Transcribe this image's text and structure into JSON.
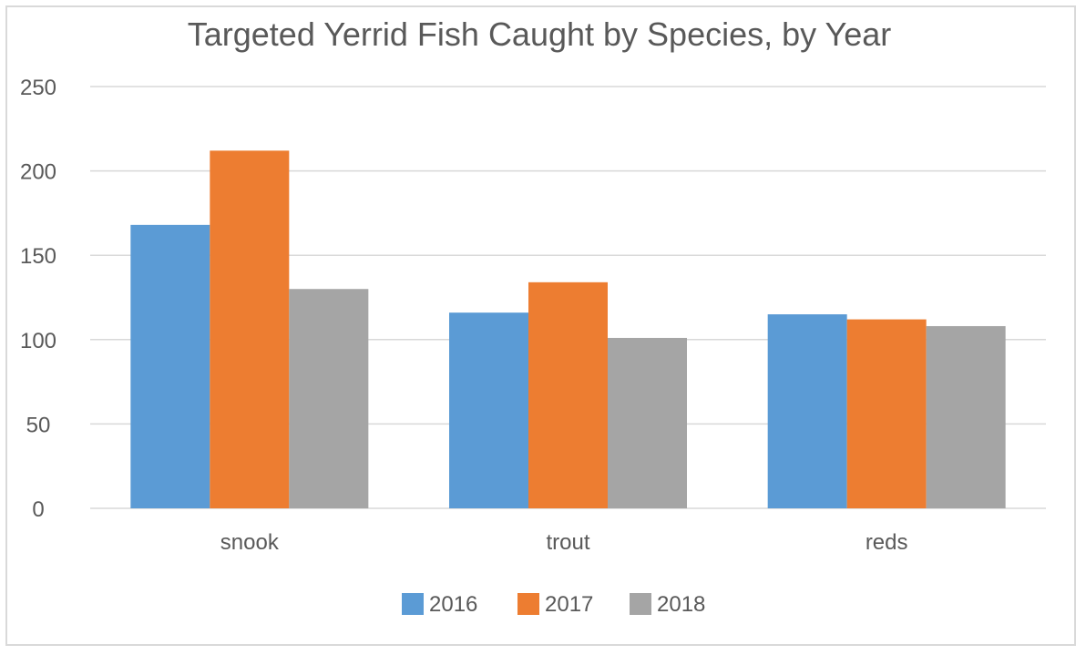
{
  "chart_data": {
    "type": "bar",
    "title": "Targeted Yerrid Fish Caught by Species, by Year",
    "xlabel": "",
    "ylabel": "",
    "categories": [
      "snook",
      "trout",
      "reds"
    ],
    "series": [
      {
        "name": "2016",
        "color": "#5b9bd5",
        "values": [
          168,
          116,
          115
        ]
      },
      {
        "name": "2017",
        "color": "#ed7d31",
        "values": [
          212,
          134,
          112
        ]
      },
      {
        "name": "2018",
        "color": "#a5a5a5",
        "values": [
          130,
          101,
          108
        ]
      }
    ],
    "yticks": [
      0,
      50,
      100,
      150,
      200,
      250
    ],
    "ylim": [
      0,
      250
    ],
    "grid": true,
    "gridline_color": "#d9d9d9",
    "legend_position": "bottom"
  }
}
